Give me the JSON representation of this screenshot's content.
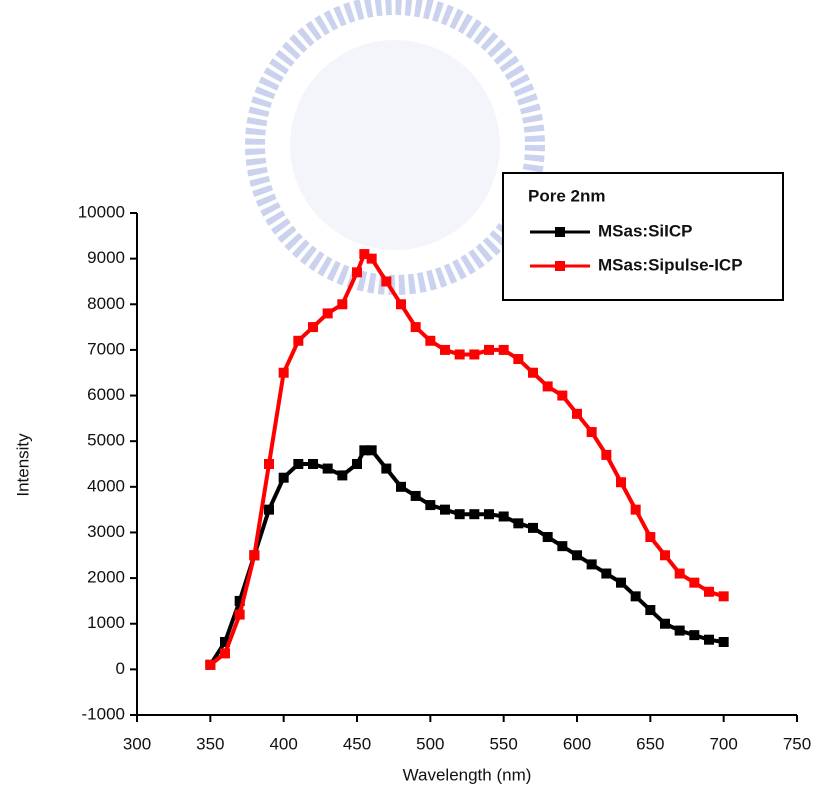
{
  "chart_data": {
    "type": "line",
    "x_label": "Wavelength (nm)",
    "y_label": "Intensity",
    "xlim": [
      300,
      750
    ],
    "xticks": [
      300,
      350,
      400,
      450,
      500,
      550,
      600,
      650,
      700,
      750
    ],
    "ylim": [
      -1000,
      10000
    ],
    "yticks": [
      -1000,
      0,
      1000,
      2000,
      3000,
      4000,
      5000,
      6000,
      7000,
      8000,
      9000,
      10000
    ],
    "legend_title": "Pore 2nm",
    "legend_position": "upper right",
    "x": [
      350,
      360,
      370,
      380,
      390,
      400,
      410,
      420,
      430,
      440,
      450,
      455,
      460,
      470,
      480,
      490,
      500,
      510,
      520,
      530,
      540,
      550,
      560,
      570,
      580,
      590,
      600,
      610,
      620,
      630,
      640,
      650,
      660,
      670,
      680,
      690,
      700
    ],
    "series": [
      {
        "name": "MSas:SiICP",
        "color": "#000000",
        "values": [
          100,
          600,
          1500,
          2500,
          3500,
          4200,
          4500,
          4500,
          4400,
          4250,
          4500,
          4800,
          4800,
          4400,
          4000,
          3800,
          3600,
          3500,
          3400,
          3400,
          3400,
          3350,
          3200,
          3100,
          2900,
          2700,
          2500,
          2300,
          2100,
          1900,
          1600,
          1300,
          1000,
          850,
          750,
          650,
          600
        ]
      },
      {
        "name": "MSas:Sipulse-ICP",
        "color": "#ff0000",
        "values": [
          100,
          350,
          1200,
          2500,
          4500,
          6500,
          7200,
          7500,
          7800,
          8000,
          8700,
          9100,
          9000,
          8500,
          8000,
          7500,
          7200,
          7000,
          6900,
          6900,
          7000,
          7000,
          6800,
          6500,
          6200,
          6000,
          5600,
          5200,
          4700,
          4100,
          3500,
          2900,
          2500,
          2100,
          1900,
          1700,
          1600
        ]
      }
    ]
  }
}
